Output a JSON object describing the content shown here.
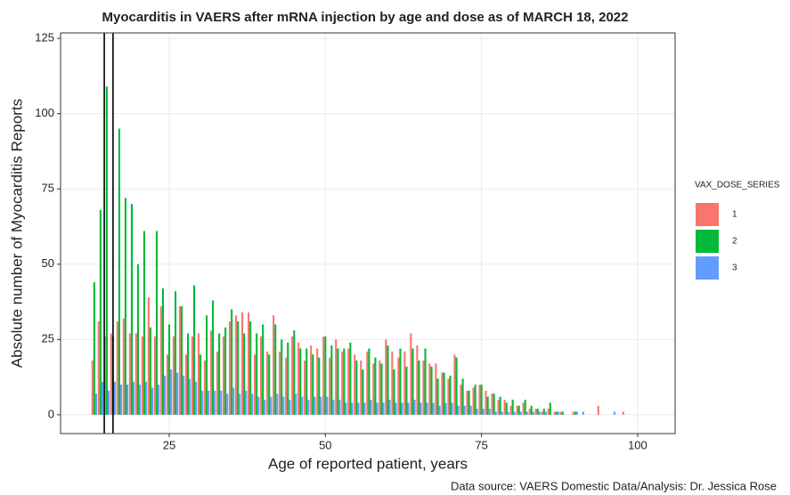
{
  "chart_data": {
    "type": "bar",
    "title": "Myocarditis in VAERS after mRNA injection by age and dose as of MARCH 18, 2022",
    "x_label": "Age of reported patient, years",
    "y_label": "Absolute number of Myocarditis Reports",
    "caption": "Data source: VAERS Domestic Data/Analysis: Dr. Jessica Rose",
    "legend_title": "VAX_DOSE_SERIES",
    "legend_position": "right",
    "grid": true,
    "xlim": [
      7.6,
      106
    ],
    "xticks": [
      25,
      50,
      75,
      100
    ],
    "ylim": [
      -6.25,
      126.8
    ],
    "yticks": [
      0,
      25,
      50,
      75,
      100,
      125
    ],
    "vlines": [
      14.6,
      16
    ],
    "x": [
      13,
      14,
      15,
      16,
      17,
      18,
      19,
      20,
      21,
      22,
      23,
      24,
      25,
      26,
      27,
      28,
      29,
      30,
      31,
      32,
      33,
      34,
      35,
      36,
      37,
      38,
      39,
      40,
      41,
      42,
      43,
      44,
      45,
      46,
      47,
      48,
      49,
      50,
      51,
      52,
      53,
      54,
      55,
      56,
      57,
      58,
      59,
      60,
      61,
      62,
      63,
      64,
      65,
      66,
      67,
      68,
      69,
      70,
      71,
      72,
      73,
      74,
      75,
      76,
      77,
      78,
      79,
      80,
      81,
      82,
      83,
      84,
      85,
      86,
      87,
      88,
      89,
      90,
      91,
      92,
      93,
      94,
      95,
      96,
      97,
      98
    ],
    "series": [
      {
        "name": "1",
        "color": "#f8766d",
        "values": [
          18,
          31,
          26,
          27,
          31,
          32,
          27,
          27,
          26,
          39,
          26,
          36,
          20,
          26,
          36,
          20,
          26,
          27,
          18,
          28,
          21,
          26,
          31,
          33,
          34,
          34,
          20,
          26,
          21,
          33,
          21,
          19,
          26,
          24,
          18,
          23,
          22,
          26,
          19,
          25,
          21,
          22,
          20,
          18,
          21,
          17,
          18,
          25,
          21,
          19,
          21,
          27,
          23,
          18,
          17,
          17,
          14,
          12,
          20,
          10,
          8,
          9,
          10,
          8,
          7,
          5,
          5,
          3,
          3,
          4,
          2,
          2,
          1,
          2,
          1,
          1,
          0,
          1,
          0,
          0,
          0,
          3,
          0,
          0,
          0,
          1
        ]
      },
      {
        "name": "2",
        "color": "#00ba38",
        "values": [
          44,
          68,
          109,
          26,
          95,
          72,
          70,
          50,
          61,
          29,
          61,
          42,
          30,
          41,
          36,
          27,
          43,
          20,
          33,
          38,
          27,
          29,
          35,
          31,
          27,
          31,
          27,
          30,
          20,
          30,
          25,
          24,
          28,
          22,
          22,
          20,
          19,
          26,
          23,
          22,
          22,
          24,
          18,
          15,
          22,
          19,
          17,
          23,
          15,
          22,
          16,
          22,
          18,
          22,
          16,
          12,
          14,
          13,
          19,
          12,
          8,
          10,
          10,
          6,
          7,
          6,
          4,
          5,
          3,
          5,
          3,
          2,
          2,
          4,
          1,
          1,
          0,
          1,
          0,
          0,
          0,
          0,
          0,
          0,
          0,
          0
        ]
      },
      {
        "name": "3",
        "color": "#619cff",
        "values": [
          7,
          11,
          8,
          11,
          10,
          10,
          11,
          10,
          11,
          9,
          10,
          13,
          15,
          14,
          13,
          12,
          11,
          8,
          8,
          8,
          8,
          7,
          9,
          7,
          8,
          7,
          6,
          5,
          6,
          7,
          6,
          5,
          7,
          6,
          5,
          6,
          6,
          6,
          5,
          5,
          4,
          4,
          4,
          4,
          5,
          4,
          4,
          5,
          4,
          4,
          4,
          5,
          4,
          4,
          4,
          3,
          4,
          4,
          3,
          3,
          3,
          2,
          2,
          2,
          1,
          1,
          1,
          1,
          1,
          1,
          1,
          1,
          1,
          0,
          1,
          0,
          0,
          1,
          1,
          0,
          0,
          0,
          0,
          1,
          0,
          0
        ]
      }
    ]
  }
}
